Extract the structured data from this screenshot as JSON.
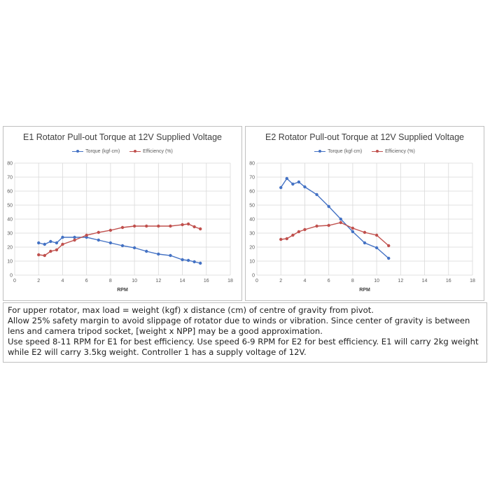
{
  "chart_data": [
    {
      "type": "line",
      "title": "E1 Rotator Pull-out Torque at 12V Supplied Voltage",
      "xlabel": "RPM",
      "ylabel": "",
      "xlim": [
        0,
        18
      ],
      "ylim": [
        0,
        80
      ],
      "xticks": [
        "0",
        "2",
        "4",
        "6",
        "8",
        "10",
        "12",
        "14",
        "16",
        "18"
      ],
      "yticks": [
        "0",
        "10",
        "20",
        "30",
        "40",
        "50",
        "60",
        "70",
        "80"
      ],
      "grid": true,
      "legend": "top-center",
      "series": [
        {
          "name": "Torque (kgf·cm)",
          "color": "#4472c4",
          "x": [
            2,
            2.5,
            3,
            3.5,
            4,
            5,
            6,
            7,
            8,
            9,
            10,
            11,
            12,
            13,
            14,
            14.5,
            15,
            15.5
          ],
          "y": [
            23,
            22,
            24,
            23,
            27,
            27,
            27,
            25,
            23,
            21,
            19.5,
            17,
            15,
            14,
            11,
            10.5,
            9.5,
            8.5
          ]
        },
        {
          "name": "Efficiency (%)",
          "color": "#c0504d",
          "x": [
            2,
            2.5,
            3,
            3.5,
            4,
            5,
            6,
            7,
            8,
            9,
            10,
            11,
            12,
            13,
            14,
            14.5,
            15,
            15.5
          ],
          "y": [
            14.5,
            14,
            17,
            18,
            22,
            25,
            28.5,
            30.5,
            32,
            34,
            35,
            35,
            35,
            35,
            36,
            36.5,
            34.5,
            33
          ]
        }
      ]
    },
    {
      "type": "line",
      "title": "E2 Rotator Pull-out Torque at 12V Supplied Voltage",
      "xlabel": "RPM",
      "ylabel": "",
      "xlim": [
        0,
        18
      ],
      "ylim": [
        0,
        80
      ],
      "xticks": [
        "0",
        "2",
        "4",
        "6",
        "8",
        "10",
        "12",
        "14",
        "16",
        "18"
      ],
      "yticks": [
        "0",
        "10",
        "20",
        "30",
        "40",
        "50",
        "60",
        "70",
        "80"
      ],
      "grid": true,
      "legend": "top-center",
      "series": [
        {
          "name": "Torque (kgf·cm)",
          "color": "#4472c4",
          "x": [
            2,
            2.5,
            3,
            3.5,
            4,
            5,
            6,
            7,
            8,
            9,
            10,
            11
          ],
          "y": [
            62.5,
            69,
            65,
            66.5,
            63,
            57.5,
            49,
            40,
            31,
            23,
            19.5,
            12
          ]
        },
        {
          "name": "Efficiency (%)",
          "color": "#c0504d",
          "x": [
            2,
            2.5,
            3,
            3.5,
            4,
            5,
            6,
            7,
            8,
            9,
            10,
            11
          ],
          "y": [
            25.5,
            26,
            28.5,
            31,
            32.5,
            35,
            35.5,
            37.5,
            33.5,
            30.5,
            28.5,
            21
          ]
        }
      ]
    }
  ],
  "notes": [
    "For upper rotator, max load = weight (kgf) x distance (cm) of centre of gravity from pivot.",
    "Allow 25% safety margin to avoid slippage of rotator due to winds or vibration. Since center of gravity is between lens and camera tripod socket, [weight x NPP] may be a good approximation.",
    "Use speed 8-11 RPM for E1 for best efficiency. Use speed 6-9 RPM for E2 for best efficiency. E1 will carry 2kg weight while E2 will carry 3.5kg weight. Controller 1 has a supply voltage of 12V."
  ]
}
